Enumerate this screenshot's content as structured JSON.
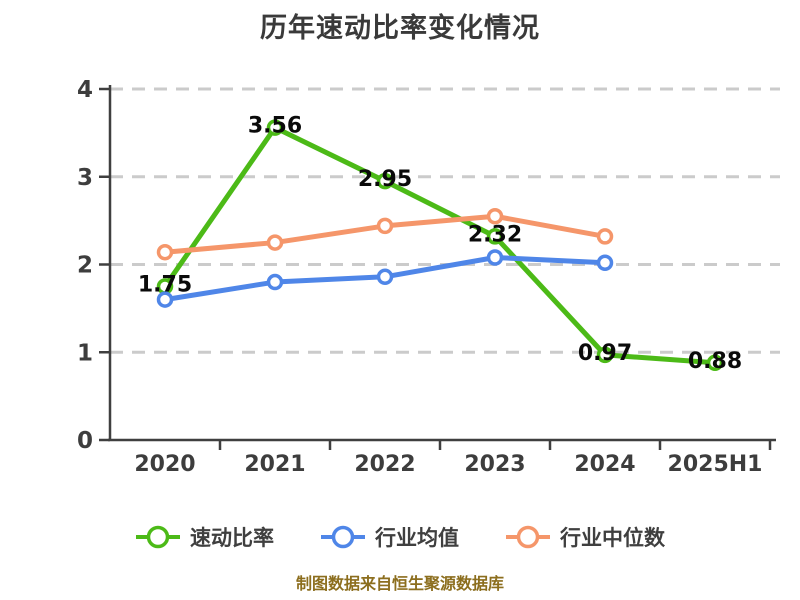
{
  "title": "历年速动比率变化情况",
  "source_note": "制图数据来自恒生聚源数据库",
  "chart_data": {
    "type": "line",
    "title": "历年速动比率变化情况",
    "categories": [
      "2020",
      "2021",
      "2022",
      "2023",
      "2024",
      "2025H1"
    ],
    "series": [
      {
        "name": "速动比率",
        "color": "#4cba17",
        "values": [
          1.75,
          3.56,
          2.95,
          2.32,
          0.97,
          0.88
        ],
        "point_labels": [
          "1.75",
          "3.56",
          "2.95",
          "2.32",
          "0.97",
          "0.88"
        ]
      },
      {
        "name": "行业均值",
        "color": "#4f86e8",
        "values": [
          1.6,
          1.8,
          1.86,
          2.08,
          2.02,
          null
        ],
        "point_labels": null
      },
      {
        "name": "行业中位数",
        "color": "#f5966a",
        "values": [
          2.14,
          2.25,
          2.44,
          2.55,
          2.32,
          null
        ],
        "point_labels": null
      }
    ],
    "xlabel": "",
    "ylabel": "",
    "ylim": [
      0,
      4
    ],
    "yticks": [
      0,
      1,
      2,
      3,
      4
    ],
    "grid": "horizontal-dashed",
    "legend_position": "bottom",
    "marker": "circle-white-fill"
  },
  "colors": {
    "background": "#ffffff",
    "title_text": "#3a3a3a",
    "axis_line": "#3f3f3f",
    "tick_label": "#3d3d3d",
    "gridline": "#cbcbcb",
    "value_label": "#0a0a0a",
    "legend_text": "#3f3f3f",
    "source_note_text": "#8c6e1e"
  }
}
